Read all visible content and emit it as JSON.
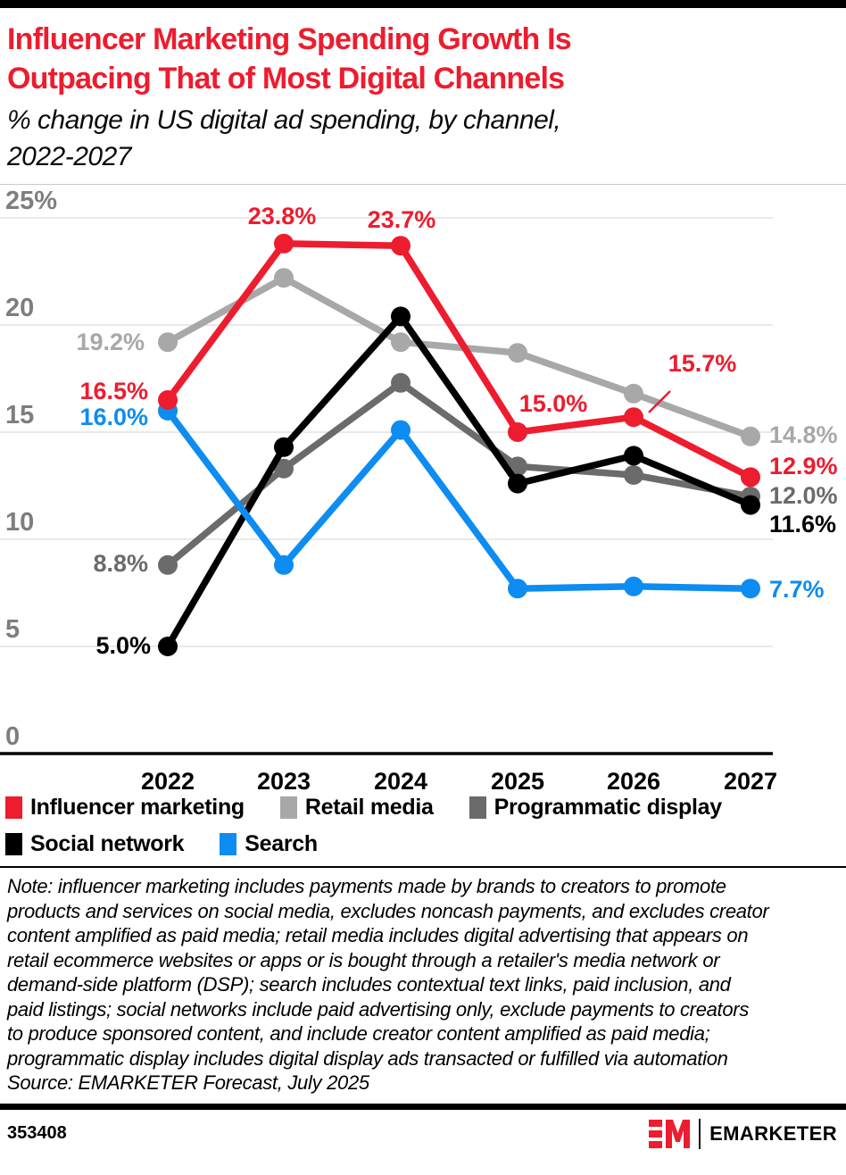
{
  "page": {
    "title_lines": [
      "Influencer Marketing Spending Growth Is",
      "Outpacing That of Most Digital Channels"
    ],
    "subtitle_lines": [
      "% change in US digital ad spending, by channel,",
      "2022-2027"
    ],
    "chart_id": "353408",
    "brand": "EMARKETER",
    "note_lines": [
      "Note: influencer marketing includes payments made by brands to creators to promote",
      "products and services on social media, excludes noncash payments, and excludes creator",
      "content amplified as paid media; retail media includes digital advertising that appears on",
      "retail ecommerce websites or apps or is bought through a retailer's media network or",
      "demand-side platform (DSP); search includes contextual text links, paid inclusion, and",
      "paid listings; social networks include paid advertising only, exclude payments to creators",
      "to produce sponsored content, and include creator content amplified as paid media;",
      "programmatic display includes digital display ads transacted or fulfilled via automation"
    ],
    "source_line": "Source: EMARKETER Forecast, July 2025"
  },
  "colors": {
    "accent_red": "#ED1C2E",
    "retail_gray": "#A8A8A8",
    "programmatic_gray": "#6B6B6B",
    "social_black": "#000000",
    "search_blue": "#0D8CF2",
    "tick_gray": "#7E7E7E",
    "grid_gray": "#E9E9E9"
  },
  "chart_data": {
    "type": "line",
    "title": "Influencer Marketing Spending Growth Is Outpacing That of Most Digital Channels",
    "subtitle": "% change in US digital ad spending, by channel, 2022-2027",
    "x": [
      "2022",
      "2023",
      "2024",
      "2025",
      "2026",
      "2027"
    ],
    "xlabel": "",
    "ylabel": "% change",
    "ylim": [
      0,
      25
    ],
    "grid": true,
    "legend_position": "bottom",
    "yticks": [
      {
        "v": 25,
        "label": "25%"
      },
      {
        "v": 20,
        "label": "20"
      },
      {
        "v": 15,
        "label": "15"
      },
      {
        "v": 10,
        "label": "10"
      },
      {
        "v": 5,
        "label": "5"
      },
      {
        "v": 0,
        "label": "0"
      }
    ],
    "series": [
      {
        "name": "Influencer marketing",
        "color_key": "accent_red",
        "values": [
          16.5,
          23.8,
          23.7,
          15.0,
          15.7,
          12.9
        ],
        "point_labels": [
          "16.5%",
          "23.8%",
          "23.7%",
          "15.0%",
          "15.7%",
          "12.9%"
        ]
      },
      {
        "name": "Retail media",
        "color_key": "retail_gray",
        "values": [
          19.2,
          22.2,
          19.2,
          18.7,
          16.8,
          14.8
        ],
        "point_labels": [
          "19.2%",
          null,
          null,
          null,
          null,
          "14.8%"
        ]
      },
      {
        "name": "Programmatic display",
        "color_key": "programmatic_gray",
        "values": [
          8.8,
          13.3,
          17.3,
          13.4,
          13.0,
          12.0
        ],
        "point_labels": [
          "8.8%",
          null,
          null,
          null,
          null,
          "12.0%"
        ]
      },
      {
        "name": "Social network",
        "color_key": "social_black",
        "values": [
          5.0,
          14.3,
          20.4,
          12.6,
          13.9,
          11.6
        ],
        "point_labels": [
          "5.0%",
          null,
          null,
          null,
          null,
          "11.6%"
        ]
      },
      {
        "name": "Search",
        "color_key": "search_blue",
        "values": [
          16.0,
          8.8,
          15.1,
          7.7,
          7.8,
          7.7
        ],
        "point_labels": [
          "16.0%",
          null,
          null,
          null,
          null,
          "7.7%"
        ]
      }
    ]
  }
}
